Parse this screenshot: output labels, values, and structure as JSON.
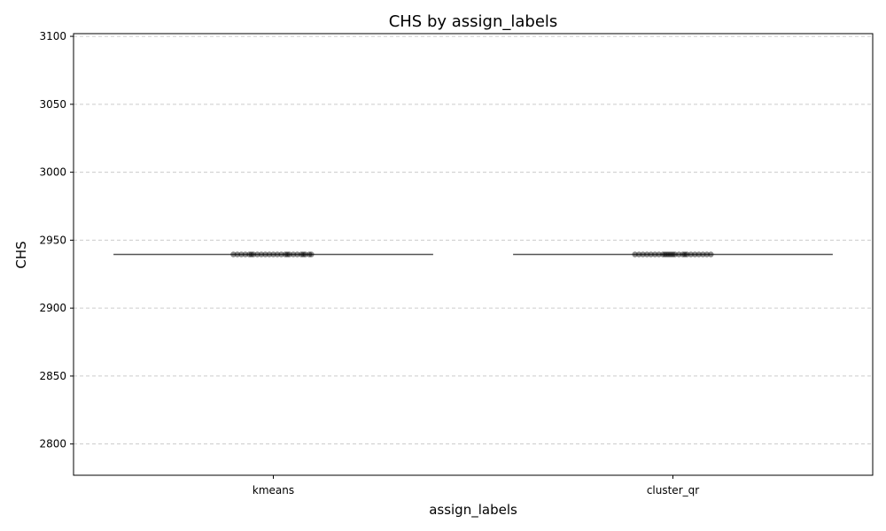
{
  "chart_data": {
    "type": "box",
    "title": "CHS by assign_labels",
    "xlabel": "assign_labels",
    "ylabel": "CHS",
    "categories": [
      "kmeans",
      "cluster_qr"
    ],
    "ylim": [
      2777,
      3102
    ],
    "yticks": [
      2800,
      2850,
      2900,
      2950,
      3000,
      3050,
      3100
    ],
    "grid": {
      "axis": "y",
      "style": "dashed"
    },
    "box_color": "#555555",
    "point_color": "#000000",
    "boxes": [
      {
        "category": "kmeans",
        "median": 2939.5,
        "q1": 2939.5,
        "q3": 2939.5,
        "whisker_low": 2939.5,
        "whisker_high": 2939.5
      },
      {
        "category": "cluster_qr",
        "median": 2939.5,
        "q1": 2939.5,
        "q3": 2939.5,
        "whisker_low": 2939.5,
        "whisker_high": 2939.5
      }
    ],
    "points": [
      {
        "category": "kmeans",
        "y": 2939.5,
        "jitter": [
          -0.2,
          -0.18,
          -0.16,
          -0.14,
          -0.12,
          -0.1,
          -0.08,
          -0.06,
          -0.04,
          -0.02,
          0.0,
          0.02,
          0.04,
          0.06,
          0.08,
          0.1,
          0.12,
          0.14,
          0.16,
          0.18,
          0.19,
          -0.11,
          0.07,
          0.15
        ]
      },
      {
        "category": "cluster_qr",
        "y": 2939.5,
        "jitter": [
          -0.19,
          -0.17,
          -0.15,
          -0.13,
          -0.11,
          -0.09,
          -0.07,
          -0.05,
          -0.03,
          -0.02,
          -0.01,
          0.01,
          0.03,
          0.05,
          0.07,
          0.09,
          0.11,
          0.13,
          0.15,
          0.17,
          0.19,
          -0.04,
          0.0,
          0.06
        ]
      }
    ]
  }
}
